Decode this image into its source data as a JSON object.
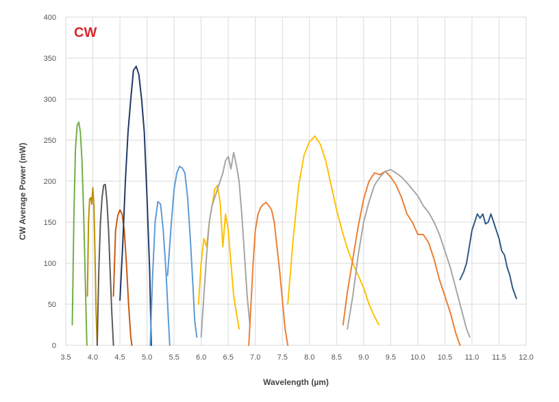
{
  "chart_data": {
    "type": "line",
    "title": "CW",
    "title_color": "#d9262c",
    "xlabel": "Wavelength (µm)",
    "ylabel": "CW Average Power (mW)",
    "xlim": [
      3.5,
      12.0
    ],
    "ylim": [
      0,
      400
    ],
    "xticks": [
      "3.5",
      "4.0",
      "4.5",
      "5.0",
      "5.5",
      "6.0",
      "6.5",
      "7.0",
      "7.5",
      "8.0",
      "8.5",
      "9.0",
      "9.5",
      "10.0",
      "10.5",
      "11.0",
      "11.5",
      "12.0"
    ],
    "yticks": [
      "0",
      "50",
      "100",
      "150",
      "200",
      "250",
      "300",
      "350",
      "400"
    ],
    "grid": true,
    "legend": "none",
    "series": [
      {
        "color": "#70ad47",
        "x": [
          3.62,
          3.65,
          3.68,
          3.71,
          3.74,
          3.77,
          3.8,
          3.83,
          3.86,
          3.89
        ],
        "y": [
          25,
          160,
          240,
          268,
          272,
          260,
          225,
          160,
          80,
          0
        ]
      },
      {
        "color": "#bf8f00",
        "x": [
          3.9,
          3.92,
          3.94,
          3.96,
          3.98,
          4.0,
          4.02,
          4.04,
          4.06,
          4.08
        ],
        "y": [
          60,
          150,
          178,
          180,
          172,
          192,
          170,
          110,
          40,
          0
        ]
      },
      {
        "color": "#595959",
        "x": [
          4.08,
          4.11,
          4.14,
          4.17,
          4.2,
          4.23,
          4.26,
          4.29,
          4.32,
          4.35,
          4.38
        ],
        "y": [
          0,
          90,
          150,
          180,
          195,
          196,
          175,
          140,
          90,
          40,
          0
        ]
      },
      {
        "color": "#c55a11",
        "x": [
          4.38,
          4.42,
          4.46,
          4.5,
          4.54,
          4.58,
          4.62,
          4.66,
          4.7,
          4.72
        ],
        "y": [
          60,
          140,
          158,
          165,
          160,
          140,
          100,
          50,
          10,
          0
        ]
      },
      {
        "color": "#1f3864",
        "x": [
          4.5,
          4.55,
          4.6,
          4.65,
          4.7,
          4.75,
          4.8,
          4.85,
          4.9,
          4.95,
          5.0,
          5.05,
          5.08
        ],
        "y": [
          55,
          120,
          200,
          260,
          300,
          335,
          340,
          330,
          300,
          260,
          180,
          90,
          0
        ]
      },
      {
        "color": "#5b9bd5",
        "x": [
          5.06,
          5.1,
          5.15,
          5.2,
          5.25,
          5.3,
          5.35,
          5.4,
          5.42
        ],
        "y": [
          0,
          80,
          150,
          175,
          172,
          140,
          90,
          25,
          0
        ]
      },
      {
        "color": "#5b9bd5",
        "x": [
          5.38,
          5.45,
          5.5,
          5.55,
          5.6,
          5.65,
          5.7,
          5.75,
          5.8,
          5.85,
          5.88,
          5.92
        ],
        "y": [
          85,
          150,
          190,
          210,
          218,
          216,
          210,
          180,
          130,
          70,
          30,
          10
        ]
      },
      {
        "color": "#ffc000",
        "x": [
          5.95,
          6.0,
          6.05,
          6.1,
          6.15,
          6.2,
          6.25,
          6.3,
          6.35,
          6.4,
          6.45,
          6.5,
          6.55,
          6.6,
          6.65,
          6.7
        ],
        "y": [
          50,
          100,
          130,
          120,
          150,
          170,
          190,
          195,
          175,
          120,
          160,
          140,
          100,
          60,
          40,
          20
        ]
      },
      {
        "color": "#a5a5a5",
        "x": [
          6.0,
          6.05,
          6.1,
          6.15,
          6.2,
          6.25,
          6.3,
          6.35,
          6.4,
          6.45,
          6.5,
          6.55,
          6.6,
          6.65,
          6.7,
          6.75,
          6.8,
          6.85,
          6.9
        ],
        "y": [
          10,
          60,
          110,
          150,
          170,
          180,
          190,
          200,
          210,
          225,
          230,
          215,
          235,
          220,
          200,
          160,
          110,
          60,
          25
        ]
      },
      {
        "color": "#ed7d31",
        "x": [
          6.88,
          6.92,
          6.96,
          7.0,
          7.05,
          7.1,
          7.15,
          7.2,
          7.25,
          7.3,
          7.35,
          7.4,
          7.45,
          7.5,
          7.55,
          7.6
        ],
        "y": [
          0,
          50,
          100,
          140,
          160,
          168,
          172,
          174,
          170,
          165,
          150,
          120,
          90,
          55,
          20,
          0
        ]
      },
      {
        "color": "#ffc000",
        "x": [
          7.6,
          7.7,
          7.8,
          7.9,
          8.0,
          8.1,
          8.2,
          8.3,
          8.4,
          8.5,
          8.6,
          8.7,
          8.8,
          8.9,
          9.0,
          9.1,
          9.2,
          9.28
        ],
        "y": [
          50,
          130,
          195,
          232,
          248,
          255,
          245,
          225,
          195,
          165,
          140,
          118,
          100,
          85,
          70,
          50,
          35,
          25
        ]
      },
      {
        "color": "#ed7d31",
        "x": [
          8.62,
          8.7,
          8.8,
          8.9,
          9.0,
          9.1,
          9.2,
          9.3,
          9.4,
          9.5,
          9.6,
          9.7,
          9.8,
          9.9,
          10.0,
          10.1,
          10.2,
          10.3,
          10.4,
          10.5,
          10.6,
          10.7,
          10.78
        ],
        "y": [
          25,
          65,
          105,
          145,
          178,
          200,
          210,
          208,
          212,
          205,
          195,
          180,
          160,
          150,
          135,
          135,
          125,
          105,
          80,
          60,
          40,
          15,
          0
        ]
      },
      {
        "color": "#a5a5a5",
        "x": [
          8.7,
          8.8,
          8.9,
          9.0,
          9.1,
          9.2,
          9.3,
          9.4,
          9.5,
          9.6,
          9.7,
          9.8,
          9.9,
          10.0,
          10.1,
          10.2,
          10.3,
          10.4,
          10.5,
          10.6,
          10.7,
          10.8,
          10.9,
          10.96
        ],
        "y": [
          20,
          60,
          110,
          150,
          175,
          195,
          205,
          212,
          214,
          210,
          205,
          198,
          190,
          182,
          170,
          162,
          150,
          135,
          115,
          95,
          70,
          45,
          20,
          10
        ]
      },
      {
        "color": "#2e5984",
        "x": [
          10.78,
          10.85,
          10.9,
          10.95,
          11.0,
          11.05,
          11.1,
          11.15,
          11.2,
          11.25,
          11.3,
          11.35,
          11.4,
          11.45,
          11.5,
          11.55,
          11.6,
          11.65,
          11.7,
          11.75,
          11.82
        ],
        "y": [
          80,
          90,
          100,
          120,
          140,
          150,
          160,
          155,
          160,
          148,
          150,
          160,
          150,
          140,
          130,
          115,
          110,
          95,
          85,
          70,
          57
        ]
      }
    ]
  }
}
